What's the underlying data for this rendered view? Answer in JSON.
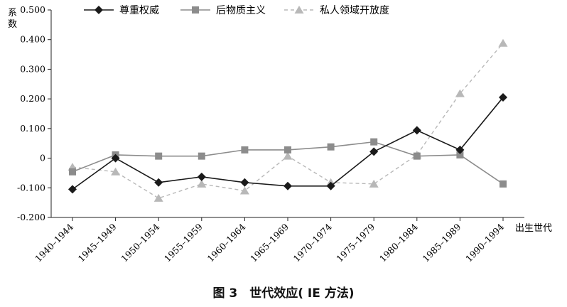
{
  "chart_data": {
    "type": "line",
    "ylabel": "系数",
    "xlabel": "出生世代",
    "ylim": [
      -0.2,
      0.5
    ],
    "yticks": [
      "0.500",
      "0.400",
      "0.300",
      "0.200",
      "0.100",
      "0",
      "-0.100",
      "-0.200"
    ],
    "categories": [
      "1940–1944",
      "1945–1949",
      "1950–1954",
      "1955–1959",
      "1960–1964",
      "1965–1969",
      "1970–1974",
      "1975–1979",
      "1980–1984",
      "1985–1989",
      "1990–1994"
    ],
    "legend_position": "top",
    "series": [
      {
        "name": "尊重权威",
        "marker": "diamond",
        "line": "solid",
        "color": "#1a1a1a",
        "values": [
          -0.105,
          0.0,
          -0.082,
          -0.063,
          -0.082,
          -0.094,
          -0.094,
          0.022,
          0.094,
          0.028,
          0.205
        ]
      },
      {
        "name": "后物质主义",
        "marker": "square",
        "line": "solid",
        "color": "#8c8c8c",
        "values": [
          -0.046,
          0.011,
          0.007,
          0.007,
          0.028,
          0.028,
          0.038,
          0.055,
          0.007,
          0.011,
          -0.087
        ]
      },
      {
        "name": "私人领域开放度",
        "marker": "triangle",
        "line": "dashed",
        "color": "#b8b8b8",
        "values": [
          -0.03,
          -0.046,
          -0.135,
          -0.087,
          -0.11,
          0.007,
          -0.082,
          -0.087,
          0.011,
          0.218,
          0.388
        ]
      }
    ]
  },
  "caption": "图 3　世代效应( IE 方法)"
}
